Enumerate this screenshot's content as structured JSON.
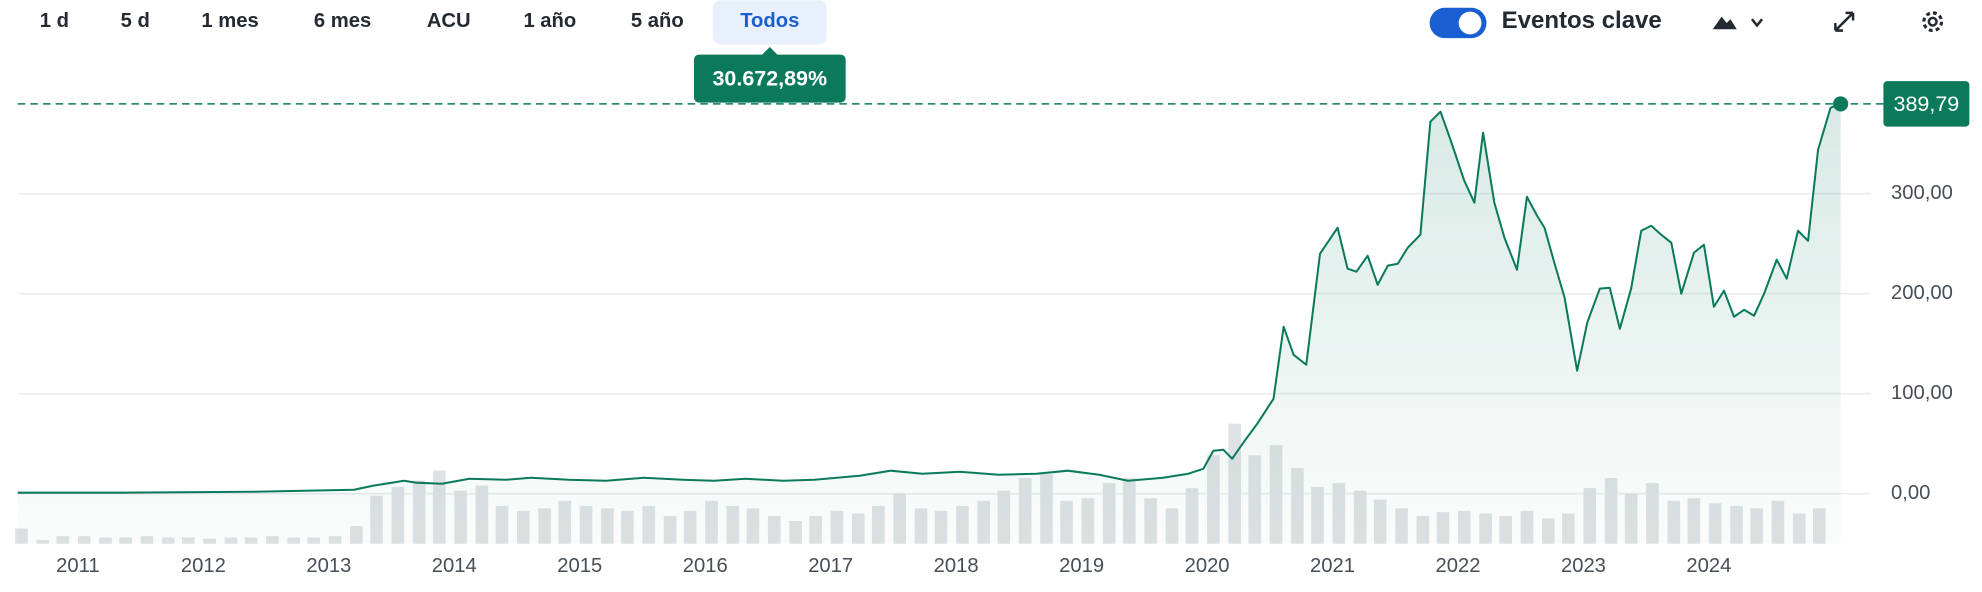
{
  "toolbar": {
    "ranges": [
      "1 d",
      "5 d",
      "1 mes",
      "6 mes",
      "ACU",
      "1 año",
      "5 año",
      "Todos"
    ],
    "toggle_label": "Eventos clave"
  },
  "chart_data": {
    "type": "line",
    "xlim": [
      2010.52,
      2025.29
    ],
    "xticks": [
      2011,
      2012,
      2013,
      2014,
      2015,
      2016,
      2017,
      2018,
      2019,
      2020,
      2021,
      2022,
      2023,
      2024
    ],
    "ylim": [
      -50,
      405
    ],
    "yticks": [
      {
        "value": 0,
        "label": "0,00"
      },
      {
        "value": 100,
        "label": "100,00"
      },
      {
        "value": 200,
        "label": "200,00"
      },
      {
        "value": 300,
        "label": "300,00"
      }
    ],
    "y2lim": [
      0,
      360
    ],
    "grid": true,
    "change_label": "30.672,89%",
    "last_price": {
      "value": 389.79,
      "label": "389,79"
    },
    "series": [
      {
        "type": "line",
        "color": "#0b7a5b",
        "x": [
          2010.52,
          2011.38,
          2012.39,
          2013.2,
          2013.35,
          2013.6,
          2013.7,
          2013.9,
          2014.12,
          2014.41,
          2014.61,
          2014.91,
          2015.21,
          2015.51,
          2015.82,
          2016.07,
          2016.32,
          2016.62,
          2016.87,
          2017.23,
          2017.48,
          2017.73,
          2018.03,
          2018.34,
          2018.64,
          2018.89,
          2019.14,
          2019.37,
          2019.65,
          2019.85,
          2019.97,
          2020.05,
          2020.13,
          2020.2,
          2020.3,
          2020.4,
          2020.53,
          2020.61,
          2020.69,
          2020.79,
          2020.9,
          2021.04,
          2021.12,
          2021.19,
          2021.28,
          2021.36,
          2021.44,
          2021.52,
          2021.6,
          2021.7,
          2021.78,
          2021.86,
          2021.94,
          2022.05,
          2022.13,
          2022.2,
          2022.29,
          2022.37,
          2022.47,
          2022.55,
          2022.63,
          2022.69,
          2022.77,
          2022.85,
          2022.95,
          2023.03,
          2023.13,
          2023.21,
          2023.29,
          2023.38,
          2023.46,
          2023.54,
          2023.62,
          2023.7,
          2023.78,
          2023.88,
          2023.96,
          2024.04,
          2024.12,
          2024.2,
          2024.28,
          2024.36,
          2024.44,
          2024.54,
          2024.62,
          2024.71,
          2024.79,
          2024.87,
          2024.97,
          2025.05
        ],
        "values": [
          1,
          1,
          2,
          4,
          8,
          13,
          11,
          10,
          15,
          14,
          16,
          14,
          13,
          16,
          14,
          13,
          15,
          13,
          14,
          18,
          23,
          20,
          22,
          19,
          20,
          23,
          19,
          13,
          16,
          20,
          25,
          43,
          44,
          35,
          53,
          70,
          95,
          167,
          139,
          129,
          240,
          266,
          225,
          222,
          238,
          209,
          228,
          230,
          246,
          259,
          372,
          382,
          354,
          313,
          291,
          361,
          291,
          256,
          224,
          297,
          278,
          266,
          230,
          196,
          123,
          171,
          205,
          206,
          165,
          205,
          263,
          268,
          259,
          251,
          200,
          241,
          249,
          187,
          203,
          177,
          184,
          178,
          200,
          234,
          215,
          263,
          253,
          344,
          386,
          389.79
        ]
      },
      {
        "type": "bar",
        "axis": "y2",
        "color": "#dfe2e4",
        "x": [
          2010.55,
          2010.72,
          2010.88,
          2011.05,
          2011.22,
          2011.38,
          2011.55,
          2011.72,
          2011.88,
          2012.05,
          2012.22,
          2012.38,
          2012.55,
          2012.72,
          2012.88,
          2013.05,
          2013.22,
          2013.38,
          2013.55,
          2013.72,
          2013.88,
          2014.05,
          2014.22,
          2014.38,
          2014.55,
          2014.72,
          2014.88,
          2015.05,
          2015.22,
          2015.38,
          2015.55,
          2015.72,
          2015.88,
          2016.05,
          2016.22,
          2016.38,
          2016.55,
          2016.72,
          2016.88,
          2017.05,
          2017.22,
          2017.38,
          2017.55,
          2017.72,
          2017.88,
          2018.05,
          2018.22,
          2018.38,
          2018.55,
          2018.72,
          2018.88,
          2019.05,
          2019.22,
          2019.38,
          2019.55,
          2019.72,
          2019.88,
          2020.05,
          2020.22,
          2020.38,
          2020.55,
          2020.72,
          2020.88,
          2021.05,
          2021.22,
          2021.38,
          2021.55,
          2021.72,
          2021.88,
          2022.05,
          2022.22,
          2022.38,
          2022.55,
          2022.72,
          2022.88,
          2023.05,
          2023.22,
          2023.38,
          2023.55,
          2023.72,
          2023.88,
          2024.05,
          2024.22,
          2024.38,
          2024.55,
          2024.72,
          2024.88
        ],
        "values": [
          12,
          3,
          6,
          6,
          5,
          5,
          6,
          5,
          5,
          4,
          5,
          5,
          6,
          5,
          5,
          6,
          14,
          38,
          45,
          50,
          58,
          42,
          46,
          30,
          26,
          28,
          34,
          30,
          28,
          26,
          30,
          22,
          26,
          34,
          30,
          28,
          22,
          18,
          22,
          26,
          24,
          30,
          40,
          28,
          26,
          30,
          34,
          42,
          52,
          55,
          34,
          36,
          48,
          52,
          36,
          28,
          44,
          70,
          95,
          70,
          78,
          60,
          45,
          48,
          42,
          35,
          28,
          22,
          25,
          26,
          24,
          22,
          26,
          20,
          24,
          44,
          52,
          40,
          48,
          34,
          36,
          32,
          30,
          28,
          34,
          24,
          28
        ]
      }
    ]
  }
}
